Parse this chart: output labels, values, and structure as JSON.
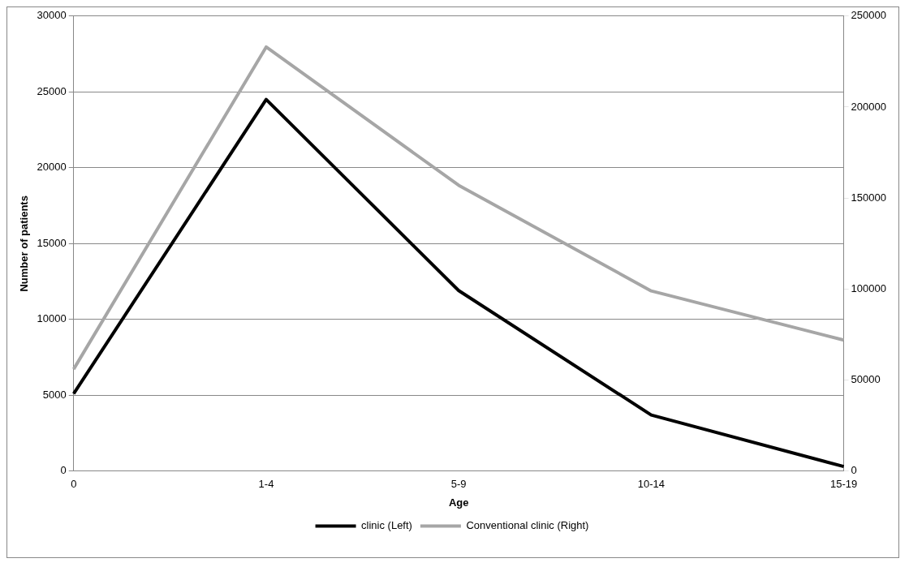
{
  "chart_data": {
    "type": "line",
    "xlabel": "Age",
    "ylabel": "Number of patients",
    "categories": [
      "0",
      "1-4",
      "5-9",
      "10-14",
      "15-19"
    ],
    "series": [
      {
        "name": "clinic (Left)",
        "color": "#000000",
        "values": [
          5100,
          24500,
          11900,
          3700,
          300
        ]
      },
      {
        "name": "Conventional clinic (Right)",
        "color": "#a6a6a6",
        "values": [
          56000,
          233000,
          157000,
          99000,
          72000
        ],
        "axis": "y2"
      }
    ],
    "ylim": [
      0,
      30000
    ],
    "yticks": [
      0,
      5000,
      10000,
      15000,
      20000,
      25000,
      30000
    ],
    "y2lim": [
      0,
      250000
    ],
    "y2ticks": [
      0,
      50000,
      100000,
      150000,
      200000,
      250000
    ],
    "grid": "y",
    "legend": "bottom",
    "marker": "none",
    "line_style": "solid"
  }
}
